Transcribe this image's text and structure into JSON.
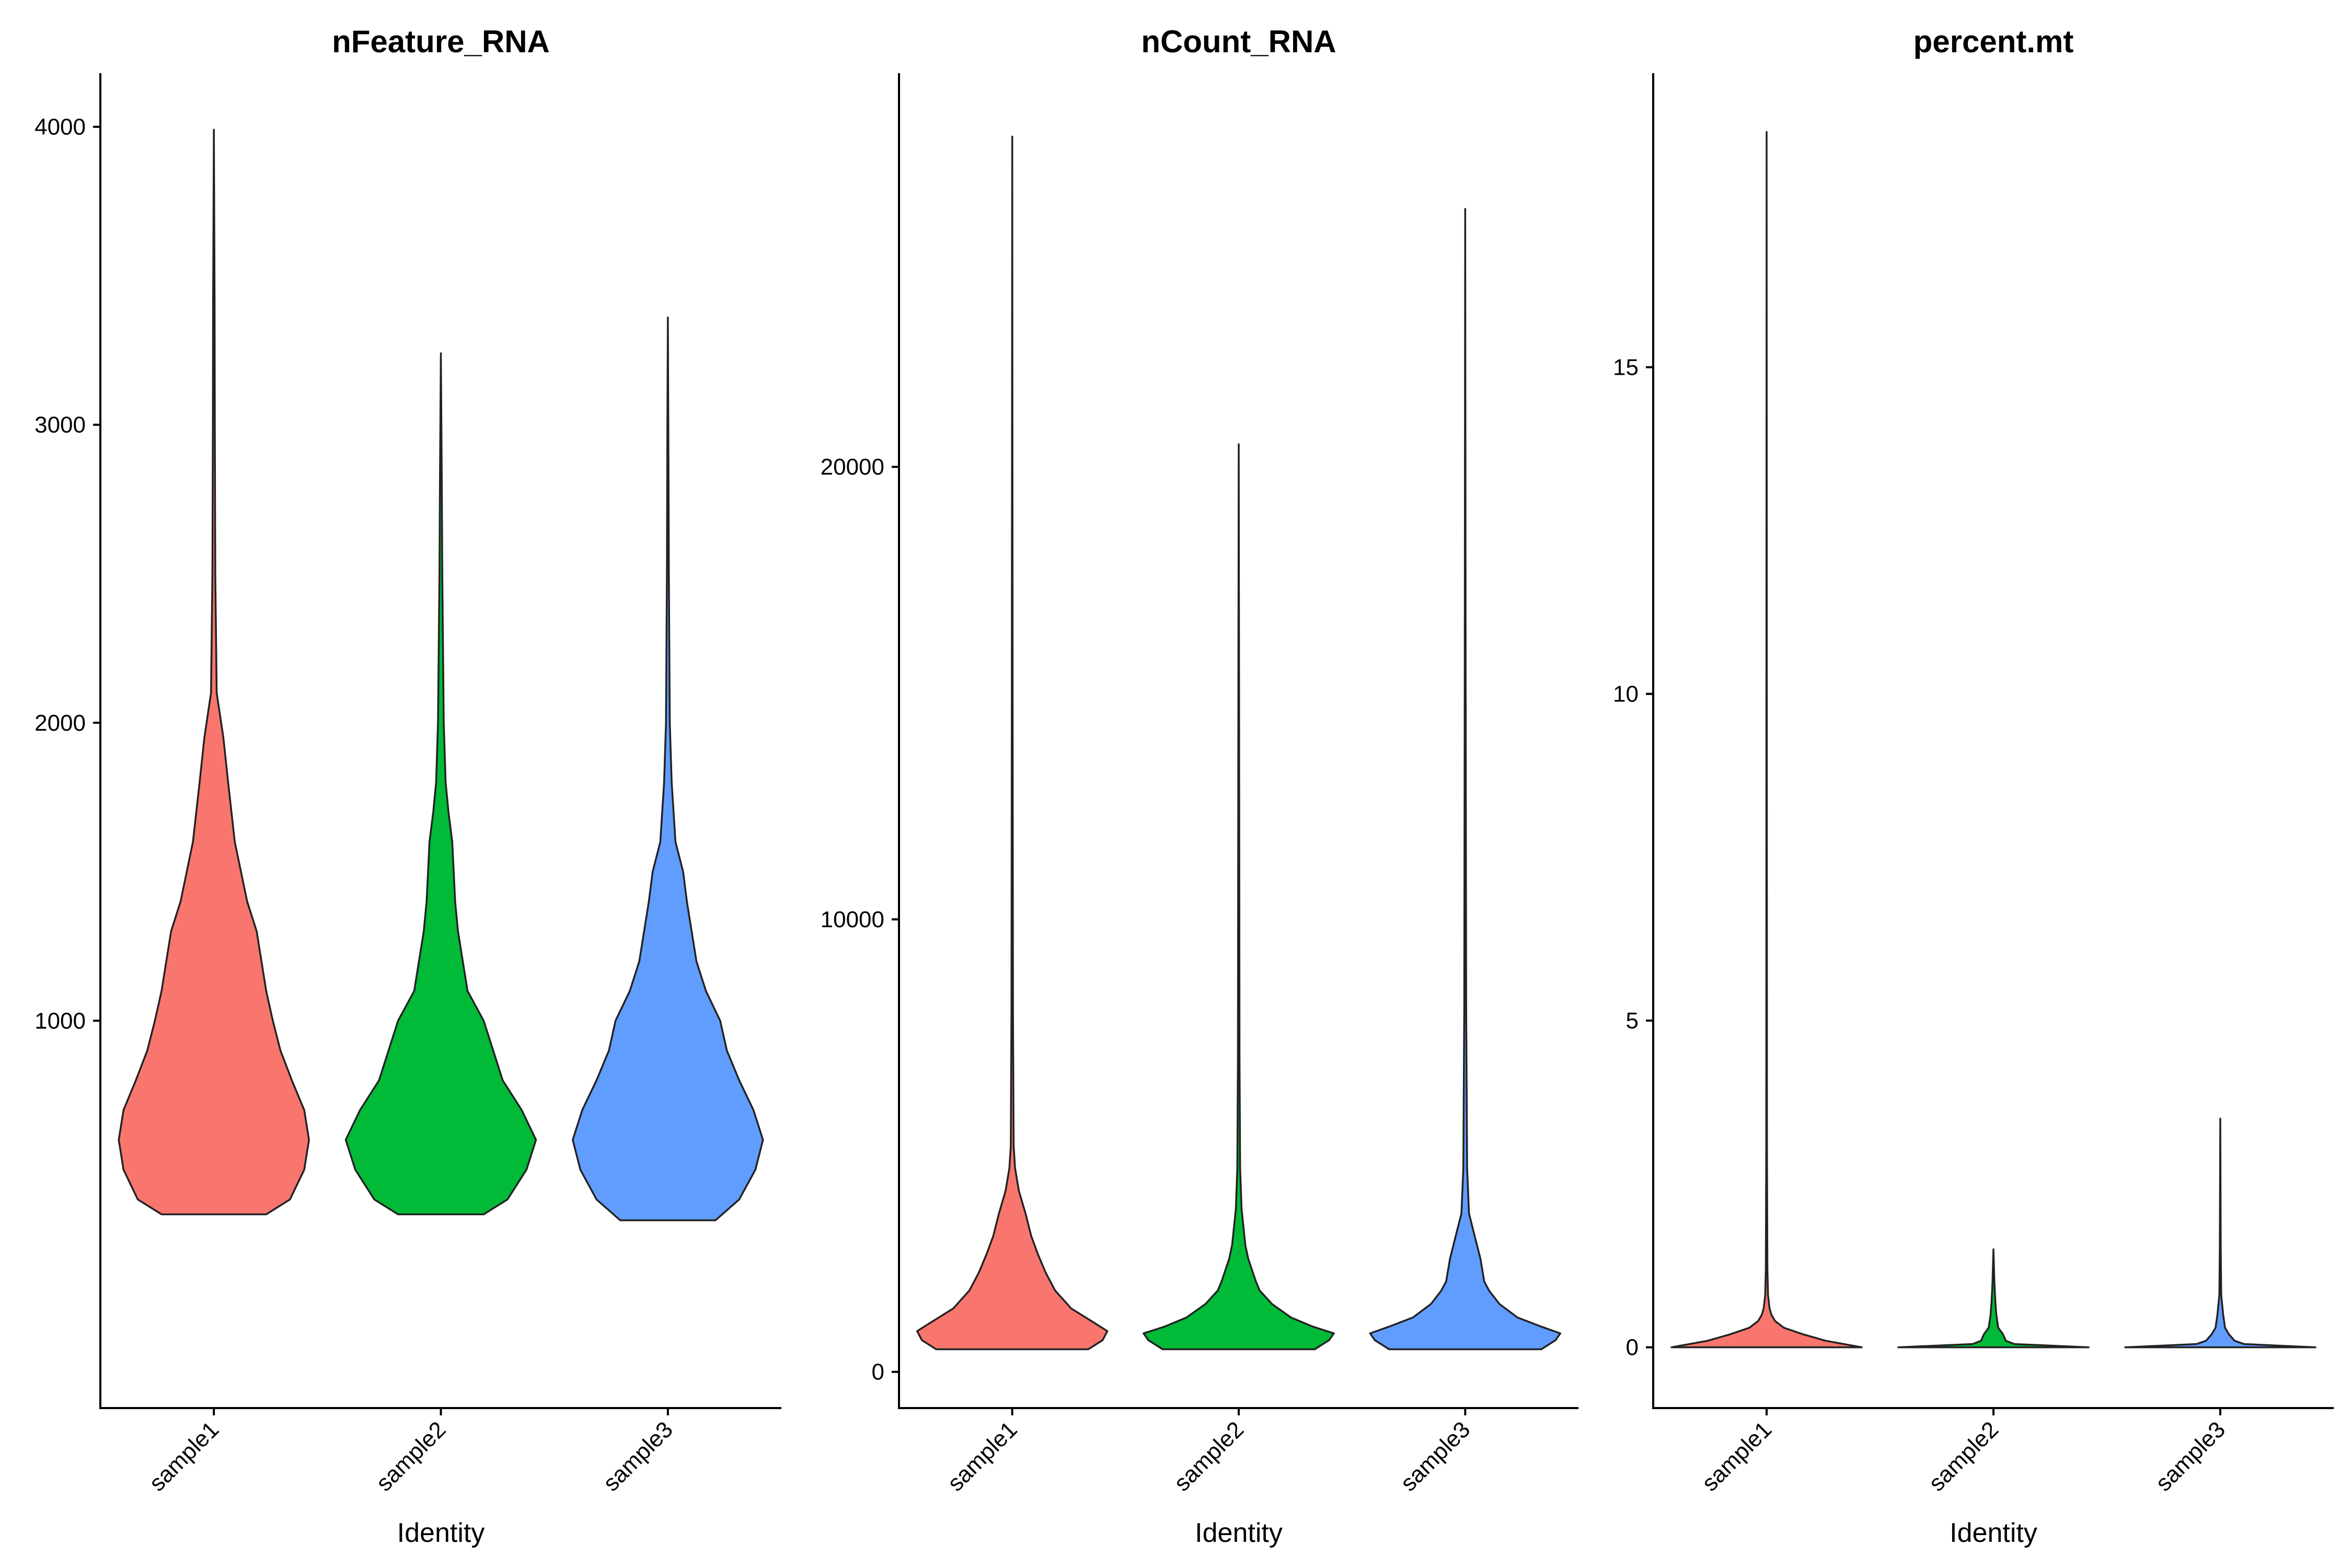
{
  "chart_data": [
    {
      "type": "violin",
      "title": "nFeature_RNA",
      "xlabel": "Identity",
      "ylabel": "",
      "ylim": [
        -300,
        4180
      ],
      "yticks": [
        1000,
        2000,
        3000,
        4000
      ],
      "ytick_labels": [
        "1000",
        "2000",
        "3000",
        "4000"
      ],
      "categories": [
        "sample1",
        "sample2",
        "sample3"
      ],
      "colors": [
        "#F8766D",
        "#00BA38",
        "#619CFF"
      ],
      "series": [
        {
          "category": "sample1",
          "min": 350,
          "max": 3990,
          "profile": [
            [
              350,
              0.55
            ],
            [
              400,
              0.8
            ],
            [
              500,
              0.95
            ],
            [
              600,
              1.0
            ],
            [
              700,
              0.95
            ],
            [
              800,
              0.82
            ],
            [
              900,
              0.7
            ],
            [
              1000,
              0.62
            ],
            [
              1100,
              0.55
            ],
            [
              1200,
              0.5
            ],
            [
              1300,
              0.45
            ],
            [
              1400,
              0.35
            ],
            [
              1600,
              0.22
            ],
            [
              1800,
              0.15
            ],
            [
              1950,
              0.1
            ],
            [
              2100,
              0.03
            ],
            [
              2500,
              0.015
            ],
            [
              3000,
              0.01
            ],
            [
              3400,
              0.008
            ],
            [
              3990,
              0.0
            ]
          ]
        },
        {
          "category": "sample2",
          "min": 350,
          "max": 3240,
          "profile": [
            [
              350,
              0.45
            ],
            [
              400,
              0.7
            ],
            [
              500,
              0.9
            ],
            [
              600,
              1.0
            ],
            [
              700,
              0.85
            ],
            [
              800,
              0.65
            ],
            [
              900,
              0.55
            ],
            [
              1000,
              0.45
            ],
            [
              1100,
              0.28
            ],
            [
              1200,
              0.23
            ],
            [
              1300,
              0.18
            ],
            [
              1400,
              0.15
            ],
            [
              1600,
              0.12
            ],
            [
              1700,
              0.08
            ],
            [
              1800,
              0.05
            ],
            [
              2000,
              0.03
            ],
            [
              2500,
              0.015
            ],
            [
              2800,
              0.01
            ],
            [
              3240,
              0.0
            ]
          ]
        },
        {
          "category": "sample3",
          "min": 330,
          "max": 3360,
          "profile": [
            [
              330,
              0.5
            ],
            [
              400,
              0.75
            ],
            [
              500,
              0.92
            ],
            [
              600,
              1.0
            ],
            [
              700,
              0.9
            ],
            [
              800,
              0.75
            ],
            [
              900,
              0.62
            ],
            [
              1000,
              0.55
            ],
            [
              1100,
              0.4
            ],
            [
              1200,
              0.3
            ],
            [
              1300,
              0.25
            ],
            [
              1400,
              0.2
            ],
            [
              1500,
              0.16
            ],
            [
              1600,
              0.08
            ],
            [
              1800,
              0.04
            ],
            [
              2000,
              0.02
            ],
            [
              2500,
              0.01
            ],
            [
              3000,
              0.005
            ],
            [
              3360,
              0.0
            ]
          ]
        }
      ]
    },
    {
      "type": "violin",
      "title": "nCount_RNA",
      "xlabel": "Identity",
      "ylabel": "",
      "ylim": [
        -800,
        28700
      ],
      "yticks": [
        0,
        10000,
        20000
      ],
      "ytick_labels": [
        "0",
        "10000",
        "20000"
      ],
      "categories": [
        "sample1",
        "sample2",
        "sample3"
      ],
      "colors": [
        "#F8766D",
        "#00BA38",
        "#619CFF"
      ],
      "series": [
        {
          "category": "sample1",
          "min": 500,
          "max": 27300,
          "profile": [
            [
              500,
              0.8
            ],
            [
              700,
              0.95
            ],
            [
              900,
              1.0
            ],
            [
              1100,
              0.85
            ],
            [
              1400,
              0.62
            ],
            [
              1800,
              0.45
            ],
            [
              2200,
              0.35
            ],
            [
              2600,
              0.27
            ],
            [
              3000,
              0.2
            ],
            [
              3500,
              0.14
            ],
            [
              4000,
              0.07
            ],
            [
              4500,
              0.03
            ],
            [
              5000,
              0.015
            ],
            [
              8000,
              0.008
            ],
            [
              15000,
              0.004
            ],
            [
              27300,
              0.0
            ]
          ]
        },
        {
          "category": "sample2",
          "min": 500,
          "max": 20500,
          "profile": [
            [
              500,
              0.8
            ],
            [
              700,
              0.95
            ],
            [
              850,
              1.0
            ],
            [
              1000,
              0.78
            ],
            [
              1200,
              0.55
            ],
            [
              1500,
              0.35
            ],
            [
              1800,
              0.22
            ],
            [
              2000,
              0.18
            ],
            [
              2500,
              0.1
            ],
            [
              2800,
              0.07
            ],
            [
              3200,
              0.05
            ],
            [
              3600,
              0.03
            ],
            [
              4500,
              0.015
            ],
            [
              7000,
              0.008
            ],
            [
              15000,
              0.004
            ],
            [
              20500,
              0.0
            ]
          ]
        },
        {
          "category": "sample3",
          "min": 500,
          "max": 25700,
          "profile": [
            [
              500,
              0.8
            ],
            [
              700,
              0.95
            ],
            [
              850,
              1.0
            ],
            [
              1000,
              0.8
            ],
            [
              1200,
              0.55
            ],
            [
              1500,
              0.36
            ],
            [
              1800,
              0.25
            ],
            [
              2000,
              0.2
            ],
            [
              2500,
              0.16
            ],
            [
              3000,
              0.1
            ],
            [
              3500,
              0.04
            ],
            [
              4500,
              0.02
            ],
            [
              8000,
              0.01
            ],
            [
              15000,
              0.005
            ],
            [
              25700,
              0.0
            ]
          ]
        }
      ]
    },
    {
      "type": "violin",
      "title": "percent.mt",
      "xlabel": "Identity",
      "ylabel": "",
      "ylim": [
        -0.93,
        19.5
      ],
      "yticks": [
        0,
        5,
        10,
        15
      ],
      "ytick_labels": [
        "0",
        "5",
        "10",
        "15"
      ],
      "categories": [
        "sample1",
        "sample2",
        "sample3"
      ],
      "colors": [
        "#F8766D",
        "#00BA38",
        "#619CFF"
      ],
      "series": [
        {
          "category": "sample1",
          "min": 0,
          "max": 18.6,
          "profile": [
            [
              0,
              1.0
            ],
            [
              0.1,
              0.62
            ],
            [
              0.2,
              0.38
            ],
            [
              0.3,
              0.18
            ],
            [
              0.4,
              0.09
            ],
            [
              0.5,
              0.05
            ],
            [
              0.6,
              0.03
            ],
            [
              0.8,
              0.015
            ],
            [
              1.2,
              0.008
            ],
            [
              3.0,
              0.004
            ],
            [
              18.6,
              0.0
            ]
          ]
        },
        {
          "category": "sample2",
          "min": 0,
          "max": 1.5,
          "profile": [
            [
              0,
              1.0
            ],
            [
              0.05,
              0.22
            ],
            [
              0.1,
              0.13
            ],
            [
              0.2,
              0.1
            ],
            [
              0.3,
              0.05
            ],
            [
              0.5,
              0.03
            ],
            [
              0.7,
              0.02
            ],
            [
              1.0,
              0.01
            ],
            [
              1.5,
              0.0
            ]
          ]
        },
        {
          "category": "sample3",
          "min": 0,
          "max": 3.5,
          "profile": [
            [
              0,
              1.0
            ],
            [
              0.05,
              0.25
            ],
            [
              0.1,
              0.15
            ],
            [
              0.2,
              0.09
            ],
            [
              0.3,
              0.05
            ],
            [
              0.5,
              0.03
            ],
            [
              0.8,
              0.01
            ],
            [
              1.5,
              0.005
            ],
            [
              3.5,
              0.0
            ]
          ]
        }
      ]
    }
  ]
}
